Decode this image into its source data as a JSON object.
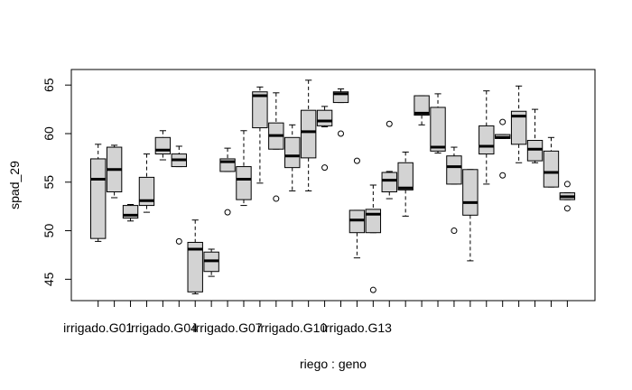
{
  "chart_data": {
    "type": "boxplot",
    "xlabel": "riego : geno",
    "ylabel": "spad_29",
    "ylim": [
      42.8,
      66.6
    ],
    "yticks": [
      45,
      50,
      55,
      60,
      65
    ],
    "xtick_labels": [
      "irrigado.G01",
      "irrigado.G04",
      "irrigado.G07",
      "irrigado.G10",
      "irrigado.G13"
    ],
    "xtick_label_positions": [
      1,
      5,
      9,
      13,
      17
    ],
    "box_count": 30,
    "box_fill": "#d3d3d3",
    "boxes": [
      {
        "q1": 49.2,
        "median": 55.3,
        "q3": 57.4,
        "whisker_low": 48.9,
        "whisker_high": 58.9,
        "outliers": []
      },
      {
        "q1": 54.0,
        "median": 56.3,
        "q3": 58.6,
        "whisker_low": 53.4,
        "whisker_high": 58.8,
        "outliers": []
      },
      {
        "q1": 51.3,
        "median": 51.6,
        "q3": 52.6,
        "whisker_low": 51.0,
        "whisker_high": 52.7,
        "outliers": []
      },
      {
        "q1": 52.6,
        "median": 53.1,
        "q3": 55.5,
        "whisker_low": 51.9,
        "whisker_high": 57.9,
        "outliers": []
      },
      {
        "q1": 57.9,
        "median": 58.3,
        "q3": 59.6,
        "whisker_low": 57.3,
        "whisker_high": 60.3,
        "outliers": []
      },
      {
        "q1": 56.6,
        "median": 57.3,
        "q3": 57.9,
        "whisker_low": 56.6,
        "whisker_high": 58.7,
        "outliers": [
          48.9
        ]
      },
      {
        "q1": 43.7,
        "median": 48.1,
        "q3": 48.8,
        "whisker_low": 43.5,
        "whisker_high": 51.1,
        "outliers": []
      },
      {
        "q1": 45.8,
        "median": 46.9,
        "q3": 47.8,
        "whisker_low": 45.3,
        "whisker_high": 48.1,
        "outliers": []
      },
      {
        "q1": 56.1,
        "median": 57.1,
        "q3": 57.4,
        "whisker_low": 56.1,
        "whisker_high": 58.5,
        "outliers": [
          51.9
        ]
      },
      {
        "q1": 53.2,
        "median": 55.3,
        "q3": 56.6,
        "whisker_low": 52.6,
        "whisker_high": 60.3,
        "outliers": []
      },
      {
        "q1": 60.6,
        "median": 63.9,
        "q3": 64.3,
        "whisker_low": 54.9,
        "whisker_high": 64.8,
        "outliers": []
      },
      {
        "q1": 58.4,
        "median": 59.8,
        "q3": 61.1,
        "whisker_low": 58.4,
        "whisker_high": 64.2,
        "outliers": [
          53.3
        ]
      },
      {
        "q1": 56.5,
        "median": 57.7,
        "q3": 59.6,
        "whisker_low": 54.1,
        "whisker_high": 60.9,
        "outliers": []
      },
      {
        "q1": 57.5,
        "median": 60.2,
        "q3": 62.4,
        "whisker_low": 54.1,
        "whisker_high": 65.5,
        "outliers": []
      },
      {
        "q1": 60.8,
        "median": 61.3,
        "q3": 62.4,
        "whisker_low": 60.7,
        "whisker_high": 62.8,
        "outliers": [
          56.5
        ]
      },
      {
        "q1": 63.2,
        "median": 64.1,
        "q3": 64.3,
        "whisker_low": 63.2,
        "whisker_high": 64.6,
        "outliers": [
          60.0
        ]
      },
      {
        "q1": 49.8,
        "median": 51.1,
        "q3": 52.1,
        "whisker_low": 47.2,
        "whisker_high": 52.1,
        "outliers": [
          57.2
        ]
      },
      {
        "q1": 49.8,
        "median": 51.7,
        "q3": 52.2,
        "whisker_low": 49.8,
        "whisker_high": 54.7,
        "outliers": [
          43.9
        ]
      },
      {
        "q1": 54.0,
        "median": 55.2,
        "q3": 56.0,
        "whisker_low": 53.3,
        "whisker_high": 56.1,
        "outliers": [
          61.0
        ]
      },
      {
        "q1": 54.2,
        "median": 54.4,
        "q3": 57.0,
        "whisker_low": 51.5,
        "whisker_high": 58.1,
        "outliers": []
      },
      {
        "q1": 61.9,
        "median": 62.1,
        "q3": 63.9,
        "whisker_low": 60.9,
        "whisker_high": 63.9,
        "outliers": []
      },
      {
        "q1": 58.2,
        "median": 58.6,
        "q3": 62.7,
        "whisker_low": 58.0,
        "whisker_high": 64.1,
        "outliers": []
      },
      {
        "q1": 54.8,
        "median": 56.6,
        "q3": 57.7,
        "whisker_low": 54.8,
        "whisker_high": 58.6,
        "outliers": [
          50.0
        ]
      },
      {
        "q1": 51.6,
        "median": 52.9,
        "q3": 56.3,
        "whisker_low": 46.9,
        "whisker_high": 56.3,
        "outliers": []
      },
      {
        "q1": 57.9,
        "median": 58.7,
        "q3": 60.8,
        "whisker_low": 54.8,
        "whisker_high": 64.4,
        "outliers": []
      },
      {
        "q1": 59.5,
        "median": 59.6,
        "q3": 59.9,
        "whisker_low": 59.5,
        "whisker_high": 59.9,
        "outliers": [
          61.2,
          55.7
        ]
      },
      {
        "q1": 58.9,
        "median": 61.8,
        "q3": 62.3,
        "whisker_low": 57.0,
        "whisker_high": 64.9,
        "outliers": []
      },
      {
        "q1": 57.2,
        "median": 58.4,
        "q3": 59.3,
        "whisker_low": 57.0,
        "whisker_high": 62.5,
        "outliers": []
      },
      {
        "q1": 54.5,
        "median": 56.0,
        "q3": 58.2,
        "whisker_low": 54.5,
        "whisker_high": 59.6,
        "outliers": []
      },
      {
        "q1": 53.2,
        "median": 53.5,
        "q3": 53.9,
        "whisker_low": 53.2,
        "whisker_high": 53.9,
        "outliers": [
          54.8,
          52.3
        ]
      }
    ]
  }
}
